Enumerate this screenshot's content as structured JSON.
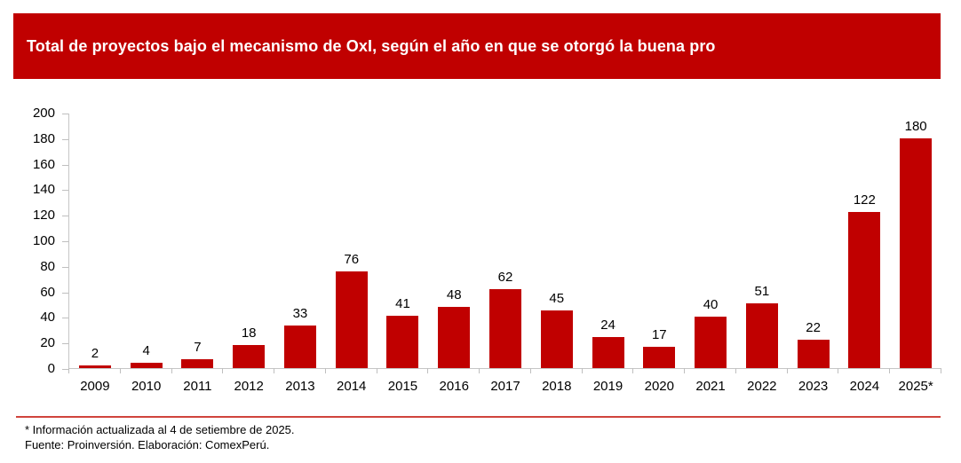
{
  "header": {
    "title": "Total de proyectos bajo el mecanismo de OxI, según el año en que se otorgó la buena pro"
  },
  "chart_data": {
    "type": "bar",
    "title": "Total de proyectos bajo el mecanismo de OxI, según el año en que se otorgó la buena pro",
    "categories": [
      "2009",
      "2010",
      "2011",
      "2012",
      "2013",
      "2014",
      "2015",
      "2016",
      "2017",
      "2018",
      "2019",
      "2020",
      "2021",
      "2022",
      "2023",
      "2024",
      "2025*"
    ],
    "values": [
      2,
      4,
      7,
      18,
      33,
      76,
      41,
      48,
      62,
      45,
      24,
      17,
      40,
      51,
      22,
      122,
      180
    ],
    "xlabel": "",
    "ylabel": "",
    "ylim": [
      0,
      200
    ],
    "y_ticks": [
      0,
      20,
      40,
      60,
      80,
      100,
      120,
      140,
      160,
      180,
      200
    ],
    "grid": false,
    "legend": false,
    "data_labels": true,
    "bar_color": "#C00000"
  },
  "footer": {
    "note_update": "* Información actualizada al 4 de setiembre de 2025.",
    "note_source": "Fuente: Proinversión. Elaboración: ComexPerú."
  },
  "colors": {
    "accent_red": "#C00000",
    "axis_gray": "#C6C6C6",
    "divider_red": "#D0443C",
    "background": "#FFFFFF",
    "text": "#000000"
  }
}
